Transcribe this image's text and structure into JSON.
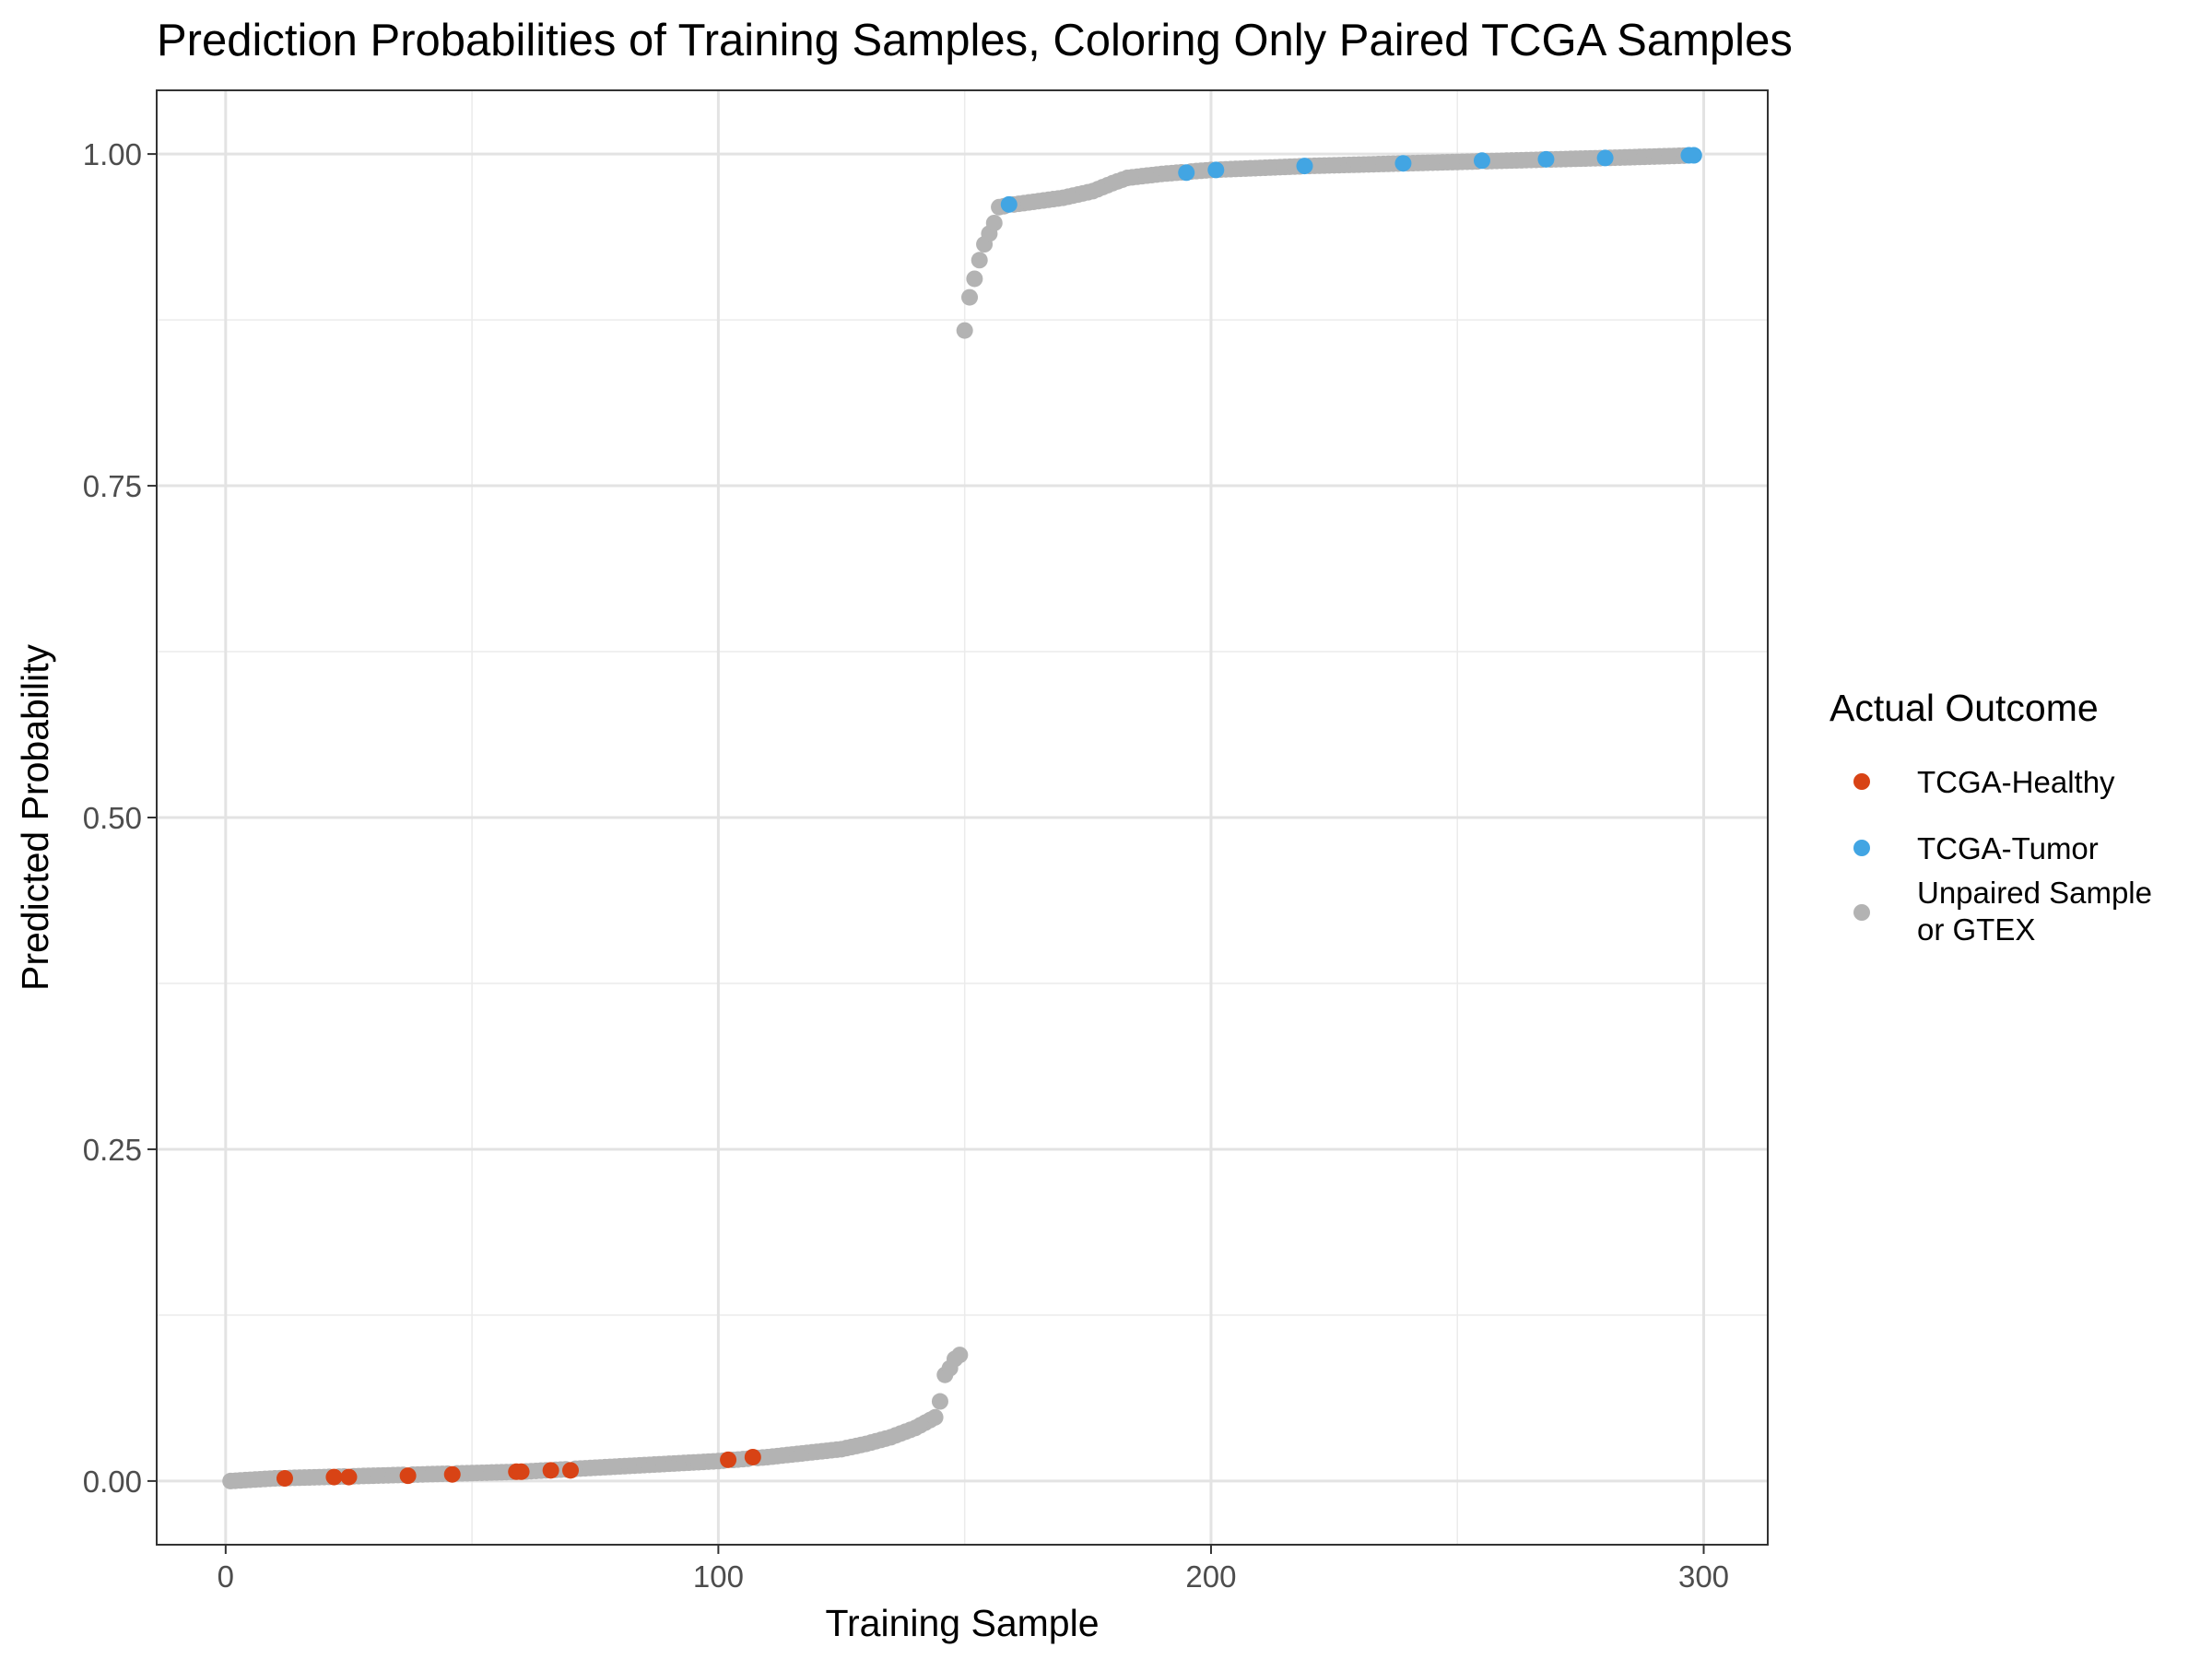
{
  "chart_data": {
    "type": "scatter",
    "title": "Prediction Probabilities of Training Samples, Coloring Only Paired TCGA Samples",
    "xlabel": "Training Sample",
    "ylabel": "Predicted Probability",
    "xlim": [
      -14,
      313
    ],
    "ylim": [
      -0.048,
      1.048
    ],
    "x_ticks": [
      0,
      100,
      200,
      300
    ],
    "x_tick_labels": [
      "0",
      "100",
      "200",
      "300"
    ],
    "y_ticks": [
      0,
      0.25,
      0.5,
      0.75,
      1.0
    ],
    "y_tick_labels": [
      "0.00",
      "0.25",
      "0.50",
      "0.75",
      "1.00"
    ],
    "grid": true,
    "legend": {
      "title": "Actual Outcome",
      "position": "right",
      "entries": [
        {
          "key": "healthy",
          "label": "TCGA-Healthy",
          "color": "#d84315"
        },
        {
          "key": "tumor",
          "label": "TCGA-Tumor",
          "color": "#42a5e3"
        },
        {
          "key": "unpaired",
          "label_lines": [
            "Unpaired Sample",
            "or GTEX"
          ],
          "color": "#b3b3b3"
        }
      ]
    },
    "n_samples": 298,
    "low_group_curve_anchors": [
      [
        1,
        0.0
      ],
      [
        10,
        0.002
      ],
      [
        20,
        0.003
      ],
      [
        30,
        0.004
      ],
      [
        40,
        0.005
      ],
      [
        50,
        0.006
      ],
      [
        60,
        0.007
      ],
      [
        70,
        0.009
      ],
      [
        80,
        0.011
      ],
      [
        90,
        0.013
      ],
      [
        100,
        0.015
      ],
      [
        110,
        0.018
      ],
      [
        120,
        0.022
      ],
      [
        125,
        0.024
      ],
      [
        130,
        0.028
      ],
      [
        135,
        0.033
      ],
      [
        140,
        0.04
      ],
      [
        144,
        0.048
      ],
      [
        145,
        0.06
      ],
      [
        146,
        0.08
      ],
      [
        147,
        0.085
      ],
      [
        148,
        0.092
      ],
      [
        149,
        0.095
      ]
    ],
    "high_group_curve_anchors": [
      [
        150,
        0.867
      ],
      [
        151,
        0.892
      ],
      [
        152,
        0.906
      ],
      [
        153,
        0.92
      ],
      [
        154,
        0.932
      ],
      [
        155,
        0.94
      ],
      [
        156,
        0.948
      ],
      [
        157,
        0.96
      ],
      [
        160,
        0.962
      ],
      [
        170,
        0.967
      ],
      [
        176,
        0.972
      ],
      [
        180,
        0.978
      ],
      [
        183,
        0.982
      ],
      [
        190,
        0.985
      ],
      [
        200,
        0.988
      ],
      [
        220,
        0.991
      ],
      [
        240,
        0.993
      ],
      [
        260,
        0.995
      ],
      [
        280,
        0.997
      ],
      [
        298,
        0.999
      ]
    ],
    "series": [
      {
        "name": "TCGA-Healthy",
        "color": "#d84315",
        "points": [
          [
            12,
            0.002
          ],
          [
            22,
            0.003
          ],
          [
            25,
            0.003
          ],
          [
            37,
            0.004
          ],
          [
            46,
            0.005
          ],
          [
            59,
            0.007
          ],
          [
            60,
            0.007
          ],
          [
            66,
            0.008
          ],
          [
            70,
            0.008
          ],
          [
            102,
            0.016
          ],
          [
            107,
            0.018
          ]
        ]
      },
      {
        "name": "TCGA-Tumor",
        "color": "#42a5e3",
        "points": [
          [
            159,
            0.962
          ],
          [
            195,
            0.986
          ],
          [
            201,
            0.988
          ],
          [
            219,
            0.991
          ],
          [
            239,
            0.993
          ],
          [
            255,
            0.995
          ],
          [
            268,
            0.996
          ],
          [
            280,
            0.997
          ],
          [
            297,
            0.999
          ],
          [
            298,
            0.999
          ]
        ]
      },
      {
        "name": "Unpaired Sample or GTEX",
        "color": "#b3b3b3",
        "points": "all remaining training samples along the curves above"
      }
    ]
  }
}
